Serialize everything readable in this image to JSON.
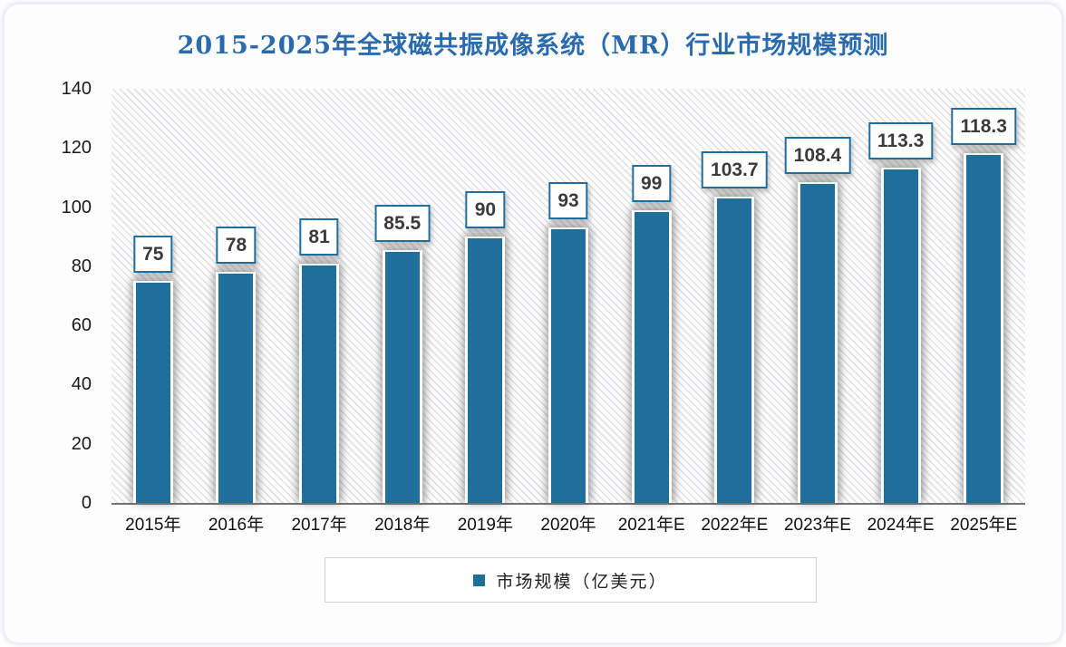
{
  "chart_data": {
    "type": "bar",
    "title": "2015-2025年全球磁共振成像系统（MR）行业市场规模预测",
    "categories": [
      "2015年",
      "2016年",
      "2017年",
      "2018年",
      "2019年",
      "2020年",
      "2021年E",
      "2022年E",
      "2023年E",
      "2024年E",
      "2025年E"
    ],
    "values": [
      75,
      78,
      81,
      85.5,
      90,
      93,
      99,
      103.7,
      108.4,
      113.3,
      118.3
    ],
    "ylim": [
      0,
      140
    ],
    "yticks": [
      0,
      20,
      40,
      60,
      80,
      100,
      120,
      140
    ],
    "grid": false,
    "legend": "市场规模（亿美元）",
    "legend_position": "bottom",
    "colors": {
      "bar": "#1E6F9B",
      "title": "#2A6BAE",
      "value_label_border": "#1E6F9B",
      "value_label_text": "#3B3B3B",
      "axis_text": "#1a1a1a",
      "axis_line": "#737373",
      "hatch_line": "#e1e1e6",
      "legend_border": "#d2d2d6"
    }
  }
}
